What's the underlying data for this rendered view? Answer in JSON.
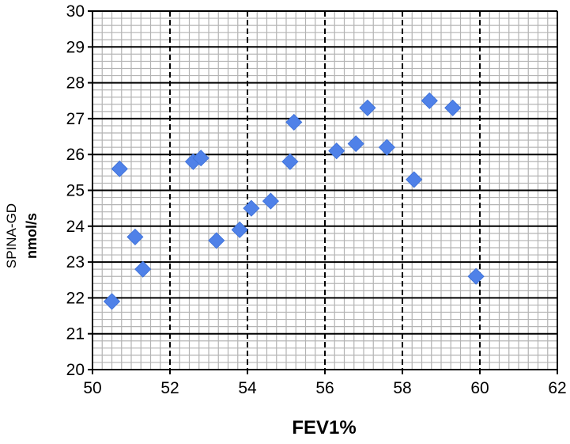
{
  "chart_data": {
    "type": "scatter",
    "title": "",
    "xlabel": "FEV1%",
    "ylabel_line1": "SPINA-GD",
    "ylabel_line2": "nmol/s",
    "xlim": [
      50,
      62
    ],
    "ylim": [
      20,
      30
    ],
    "x_major_step": 2,
    "x_minor_step": 0.25,
    "y_major_step": 1,
    "y_minor_step": 0.2,
    "xticks": [
      "50",
      "52",
      "54",
      "56",
      "58",
      "60",
      "62"
    ],
    "yticks": [
      "20",
      "21",
      "22",
      "23",
      "24",
      "25",
      "26",
      "27",
      "28",
      "29",
      "30"
    ],
    "grid": true,
    "legend": "none",
    "marker": "diamond",
    "marker_color": "#4F81E8",
    "series": [
      {
        "points": [
          {
            "x": 50.5,
            "y": 21.9
          },
          {
            "x": 50.7,
            "y": 25.6
          },
          {
            "x": 51.1,
            "y": 23.7
          },
          {
            "x": 51.3,
            "y": 22.8
          },
          {
            "x": 52.6,
            "y": 25.8
          },
          {
            "x": 52.8,
            "y": 25.9
          },
          {
            "x": 53.2,
            "y": 23.6
          },
          {
            "x": 53.8,
            "y": 23.9
          },
          {
            "x": 54.1,
            "y": 24.5
          },
          {
            "x": 54.6,
            "y": 24.7
          },
          {
            "x": 55.1,
            "y": 25.8
          },
          {
            "x": 55.2,
            "y": 26.9
          },
          {
            "x": 56.3,
            "y": 26.1
          },
          {
            "x": 56.8,
            "y": 26.3
          },
          {
            "x": 57.1,
            "y": 27.3
          },
          {
            "x": 57.6,
            "y": 26.2
          },
          {
            "x": 58.3,
            "y": 25.3
          },
          {
            "x": 58.7,
            "y": 27.5
          },
          {
            "x": 59.3,
            "y": 27.3
          },
          {
            "x": 59.9,
            "y": 22.6
          }
        ]
      }
    ]
  }
}
